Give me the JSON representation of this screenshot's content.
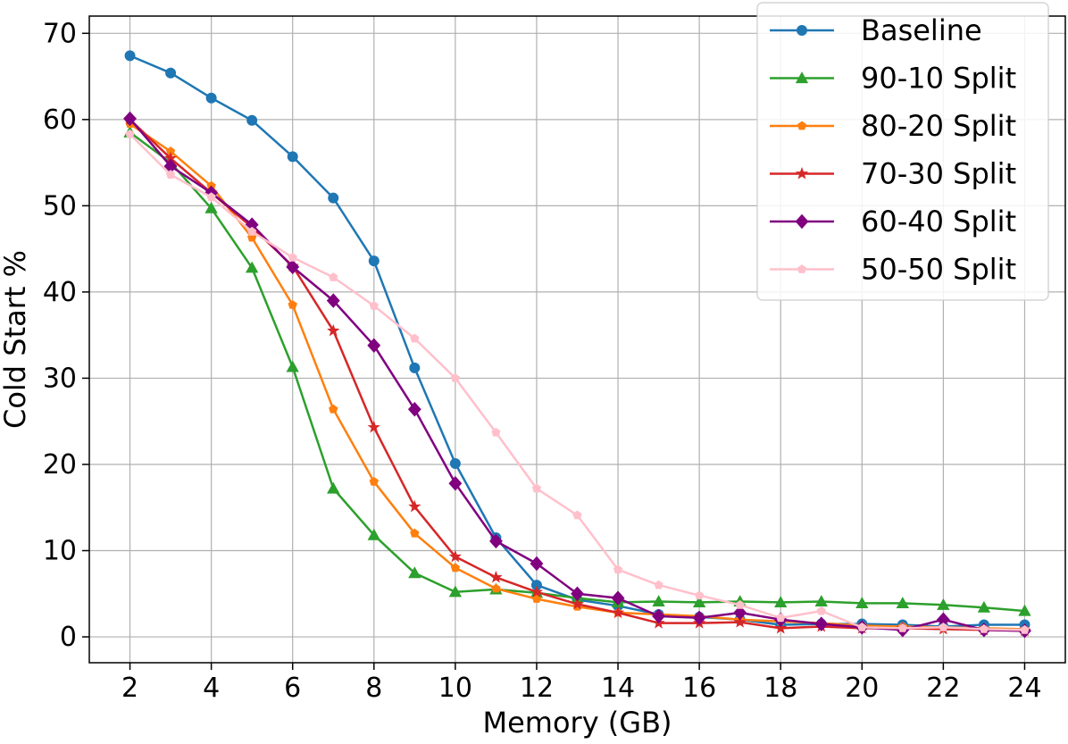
{
  "chart_data": {
    "type": "line",
    "title": "",
    "xlabel": "Memory (GB)",
    "ylabel": "Cold Start %",
    "xlim": [
      1,
      25
    ],
    "ylim": [
      -3,
      72
    ],
    "xticks": [
      2,
      4,
      6,
      8,
      10,
      12,
      14,
      16,
      18,
      20,
      22,
      24
    ],
    "yticks": [
      0,
      10,
      20,
      30,
      40,
      50,
      60,
      70
    ],
    "grid": true,
    "legend_position": "top-right",
    "x": [
      2,
      3,
      4,
      5,
      6,
      7,
      8,
      9,
      10,
      11,
      12,
      13,
      14,
      15,
      16,
      17,
      18,
      19,
      20,
      21,
      22,
      23,
      24
    ],
    "series": [
      {
        "name": "Baseline",
        "color": "#1f77b4",
        "marker": "circle",
        "values": [
          67.4,
          65.4,
          62.5,
          59.9,
          55.7,
          50.9,
          43.6,
          31.2,
          20.1,
          11.5,
          6.0,
          4.3,
          3.6,
          2.6,
          2.3,
          2.0,
          1.4,
          1.5,
          1.5,
          1.4,
          1.2,
          1.4,
          1.4
        ]
      },
      {
        "name": "90-10 Split",
        "color": "#2ca02c",
        "marker": "triangle",
        "values": [
          58.5,
          55.0,
          49.7,
          42.8,
          31.3,
          17.2,
          11.8,
          7.4,
          5.2,
          5.5,
          5.1,
          4.5,
          4.0,
          4.1,
          4.0,
          4.1,
          4.0,
          4.1,
          3.9,
          3.9,
          3.7,
          3.4,
          3.0
        ]
      },
      {
        "name": "80-20 Split",
        "color": "#ff7f0e",
        "marker": "pentagon",
        "values": [
          59.5,
          56.3,
          52.3,
          46.3,
          38.5,
          26.4,
          18.0,
          12.0,
          8.0,
          5.6,
          4.4,
          3.5,
          2.8,
          2.6,
          2.4,
          2.0,
          1.8,
          1.6,
          1.3,
          1.2,
          1.1,
          1.0,
          0.9
        ]
      },
      {
        "name": "70-30 Split",
        "color": "#d62728",
        "marker": "star",
        "values": [
          60.0,
          55.5,
          51.5,
          47.5,
          43.0,
          35.5,
          24.3,
          15.1,
          9.3,
          6.9,
          5.2,
          3.8,
          2.8,
          1.6,
          1.6,
          1.7,
          1.0,
          1.2,
          1.0,
          1.0,
          0.9,
          0.8,
          0.7
        ]
      },
      {
        "name": "60-40 Split",
        "color": "#800080",
        "marker": "diamond",
        "values": [
          60.1,
          54.6,
          51.5,
          47.8,
          42.9,
          39.0,
          33.8,
          26.4,
          17.8,
          11.1,
          8.5,
          5.0,
          4.5,
          2.4,
          2.2,
          2.8,
          2.0,
          1.5,
          1.1,
          0.8,
          2.0,
          0.8,
          0.7
        ]
      },
      {
        "name": "50-50 Split",
        "color": "#ffc0cb",
        "marker": "pentagon",
        "values": [
          58.3,
          53.6,
          51.0,
          47.0,
          44.0,
          41.7,
          38.4,
          34.6,
          30.0,
          23.7,
          17.2,
          14.1,
          7.8,
          6.0,
          4.8,
          3.7,
          2.2,
          3.0,
          1.1,
          1.0,
          1.1,
          0.9,
          0.8
        ]
      }
    ]
  }
}
